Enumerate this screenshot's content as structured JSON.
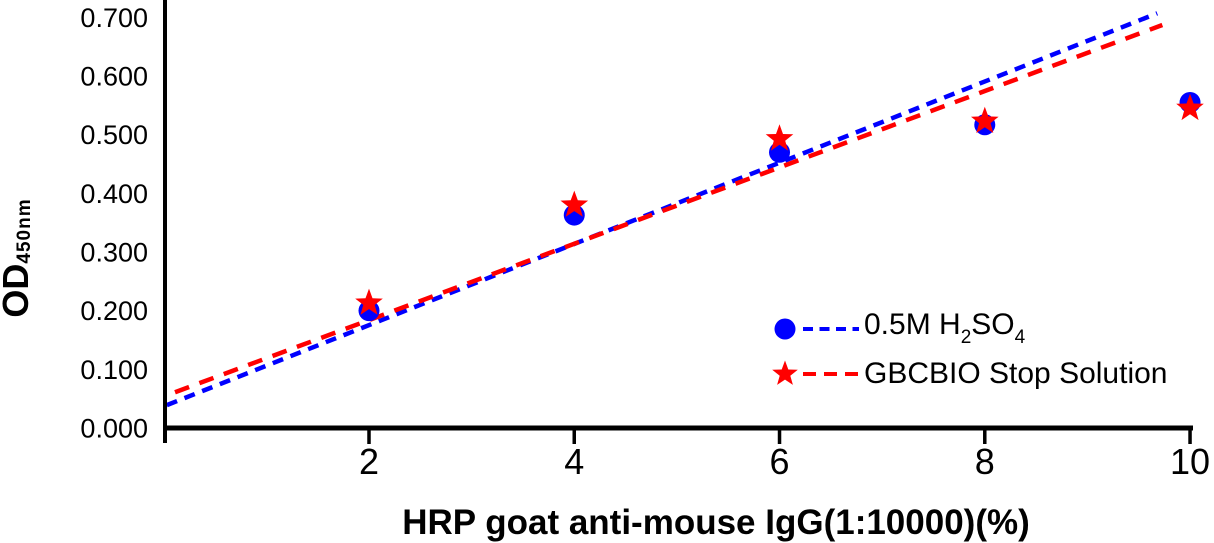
{
  "chart_data": {
    "type": "scatter",
    "title": "",
    "xlabel": "HRP goat anti-mouse IgG(1:10000)(%)",
    "ylabel": "OD",
    "ylabel_sub": "450nm",
    "xlim": [
      0,
      10.05
    ],
    "ylim": [
      0,
      0.73
    ],
    "grid": false,
    "legend_position": "inside-lower-right",
    "x": [
      2,
      4,
      6,
      8,
      10
    ],
    "x_ticks": [
      {
        "value": 2,
        "label": "2"
      },
      {
        "value": 4,
        "label": "4"
      },
      {
        "value": 6,
        "label": "6"
      },
      {
        "value": 8,
        "label": "8"
      },
      {
        "value": 10,
        "label": "10"
      }
    ],
    "y_ticks": [
      {
        "value": 0.0,
        "label": "0.000"
      },
      {
        "value": 0.1,
        "label": "0.100"
      },
      {
        "value": 0.2,
        "label": "0.200"
      },
      {
        "value": 0.3,
        "label": "0.300"
      },
      {
        "value": 0.4,
        "label": "0.400"
      },
      {
        "value": 0.5,
        "label": "0.500"
      },
      {
        "value": 0.6,
        "label": "0.600"
      },
      {
        "value": 0.7,
        "label": "0.700"
      }
    ],
    "series": [
      {
        "name": "0.5M H2SO4",
        "label_rich": [
          {
            "t": "0.5M H"
          },
          {
            "t": "2",
            "sub": true
          },
          {
            "t": "SO"
          },
          {
            "t": "4",
            "sub": true
          }
        ],
        "marker": "circle",
        "color": "#0000ff",
        "values": [
          0.2,
          0.363,
          0.47,
          0.517,
          0.555
        ],
        "trendline": {
          "x1": 0.03,
          "y1": 0.039,
          "x2": 9.68,
          "y2": 0.707
        }
      },
      {
        "name": "GBCBIO Stop Solution",
        "label_rich": [
          {
            "t": "GBCBIO Stop Solution"
          }
        ],
        "marker": "star",
        "color": "#ff0000",
        "values": [
          0.213,
          0.38,
          0.493,
          0.523,
          0.545
        ],
        "trendline": {
          "x1": 0.11,
          "y1": 0.061,
          "x2": 9.73,
          "y2": 0.687
        }
      }
    ],
    "axis_color": "#000000",
    "text_color": "#000000"
  }
}
